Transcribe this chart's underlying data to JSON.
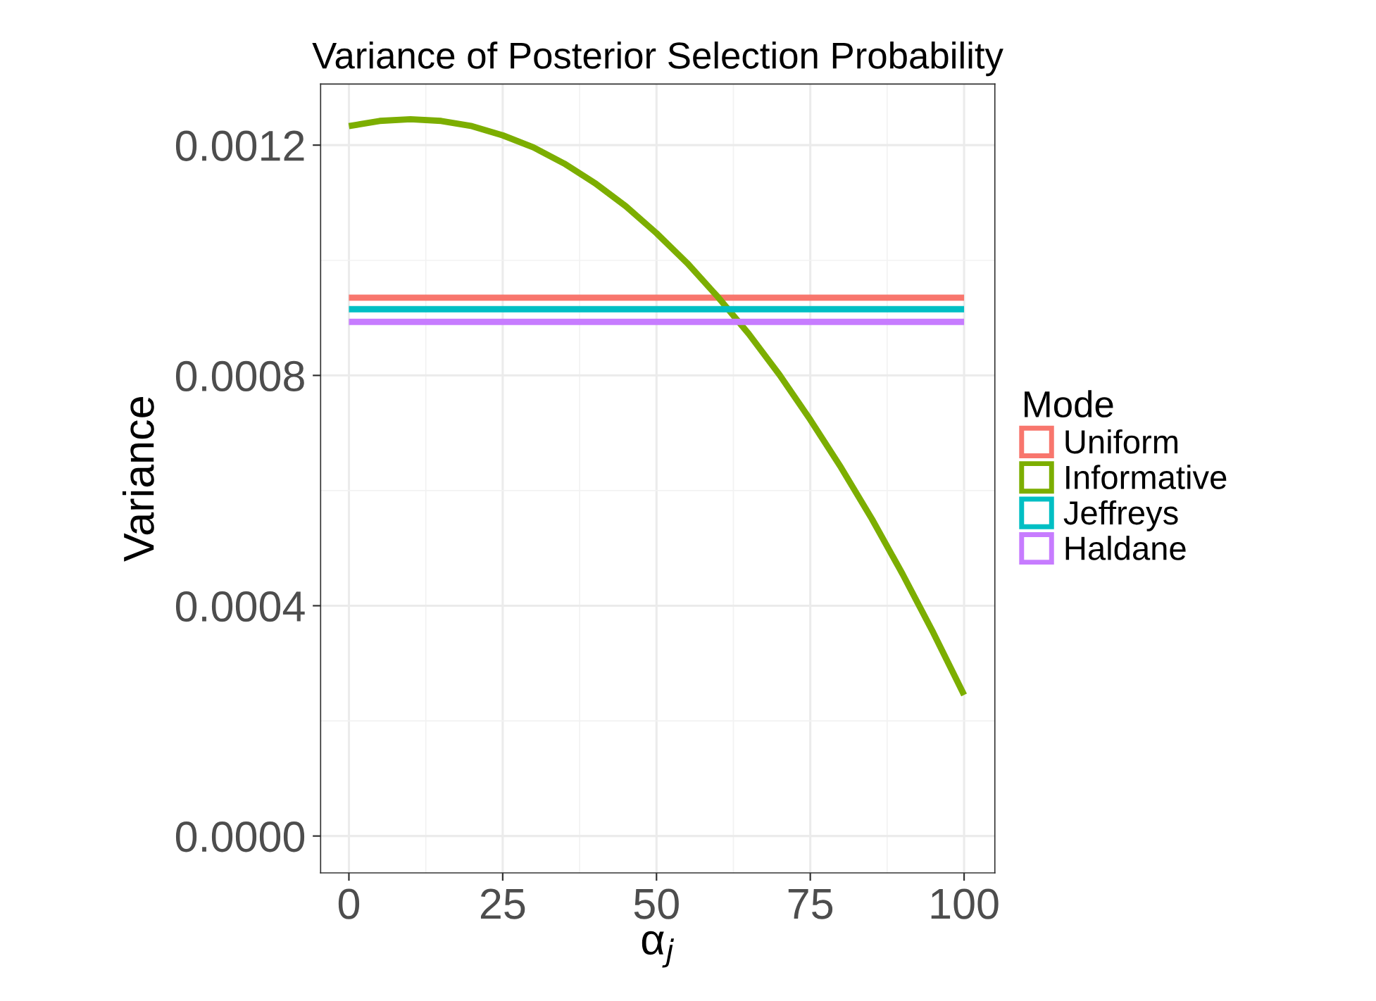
{
  "chart_data": {
    "type": "line",
    "title": "Variance of Posterior Selection Probability",
    "xlabel": "α$_{j}$",
    "ylabel": "Variance",
    "legend_title": "Mode",
    "legend": "right",
    "grid": true,
    "x": [
      0,
      5,
      10,
      15,
      20,
      25,
      30,
      35,
      40,
      45,
      50,
      55,
      60,
      65,
      70,
      75,
      80,
      85,
      90,
      95,
      100
    ],
    "xlim": [
      -4.6,
      105
    ],
    "xticks": [
      0,
      25,
      50,
      75,
      100
    ],
    "ylim": [
      -6.4e-05,
      0.001306
    ],
    "yticks": [
      {
        "value": 0,
        "label": "0.0000"
      },
      {
        "value": 0.0004,
        "label": "0.0004"
      },
      {
        "value": 0.0008,
        "label": "0.0008"
      },
      {
        "value": 0.0012,
        "label": "0.0012"
      }
    ],
    "series": [
      {
        "name": "Uniform",
        "color": "#f8766d",
        "values": [
          0.000935,
          0.000935,
          0.000935,
          0.000935,
          0.000935,
          0.000935,
          0.000935,
          0.000935,
          0.000935,
          0.000935,
          0.000935,
          0.000935,
          0.000935,
          0.000935,
          0.000935,
          0.000935,
          0.000935,
          0.000935,
          0.000935,
          0.000935,
          0.000935
        ]
      },
      {
        "name": "Informative",
        "color": "#7cae00",
        "values": [
          0.001233,
          0.001242,
          0.001245,
          0.001242,
          0.001233,
          0.001217,
          0.001196,
          0.001168,
          0.001134,
          0.001094,
          0.001047,
          0.000995,
          0.000936,
          0.000872,
          0.000801,
          0.000723,
          0.00064,
          0.000551,
          0.000455,
          0.000353,
          0.000245
        ]
      },
      {
        "name": "Jeffreys",
        "color": "#00bfc4",
        "values": [
          0.000915,
          0.000915,
          0.000915,
          0.000915,
          0.000915,
          0.000915,
          0.000915,
          0.000915,
          0.000915,
          0.000915,
          0.000915,
          0.000915,
          0.000915,
          0.000915,
          0.000915,
          0.000915,
          0.000915,
          0.000915,
          0.000915,
          0.000915,
          0.000915
        ]
      },
      {
        "name": "Haldane",
        "color": "#c77cff",
        "values": [
          0.000893,
          0.000893,
          0.000893,
          0.000893,
          0.000893,
          0.000893,
          0.000893,
          0.000893,
          0.000893,
          0.000893,
          0.000893,
          0.000893,
          0.000893,
          0.000893,
          0.000893,
          0.000893,
          0.000893,
          0.000893,
          0.000893,
          0.000893,
          0.000893
        ]
      }
    ]
  }
}
